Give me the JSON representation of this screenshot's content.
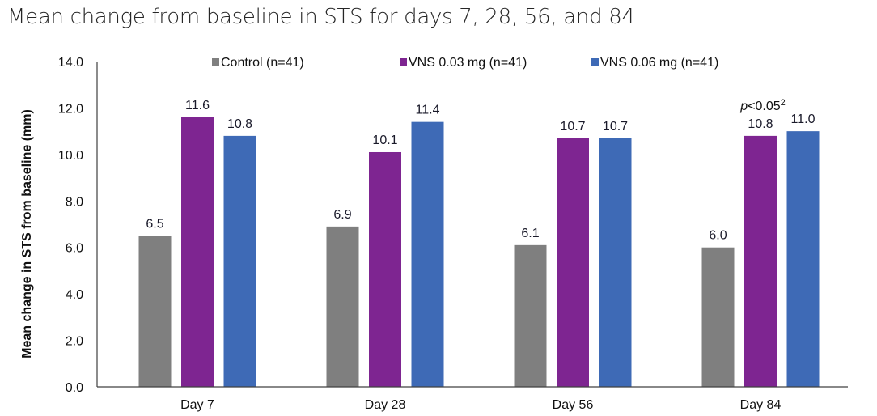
{
  "chart_data": {
    "type": "bar",
    "title": "Mean change from baseline in STS for days 7, 28, 56, and 84",
    "xlabel": "",
    "ylabel": "Mean change in STS from baseline (mm)",
    "ylim": [
      0,
      14
    ],
    "yticks": [
      0,
      2,
      4,
      6,
      8,
      10,
      12,
      14
    ],
    "ytick_labels": [
      "0.0",
      "2.0",
      "4.0",
      "6.0",
      "8.0",
      "10.0",
      "12.0",
      "14.0"
    ],
    "grid": false,
    "legend_position": "top-center",
    "categories": [
      "Day 7",
      "Day 28",
      "Day 56",
      "Day 84"
    ],
    "series": [
      {
        "name": "Control (n=41)",
        "color": "#7f7f7f",
        "values": [
          6.5,
          6.9,
          6.1,
          6.0
        ],
        "labels": [
          "6.5",
          "6.9",
          "6.1",
          "6.0"
        ]
      },
      {
        "name": "VNS 0.03 mg (n=41)",
        "color": "#7e2591",
        "values": [
          11.6,
          10.1,
          10.7,
          10.8
        ],
        "labels": [
          "11.6",
          "10.1",
          "10.7",
          "10.8"
        ]
      },
      {
        "name": "VNS 0.06 mg (n=41)",
        "color": "#3e6ab6",
        "values": [
          10.8,
          11.4,
          10.7,
          11.0
        ],
        "labels": [
          "10.8",
          "11.4",
          "10.7",
          "11.0"
        ]
      }
    ],
    "annotations": [
      {
        "category": "Day 84",
        "series": "VNS 0.03 mg (n=41)",
        "italic_part": "p",
        "text": "<0.05",
        "superscript": "2"
      }
    ]
  }
}
